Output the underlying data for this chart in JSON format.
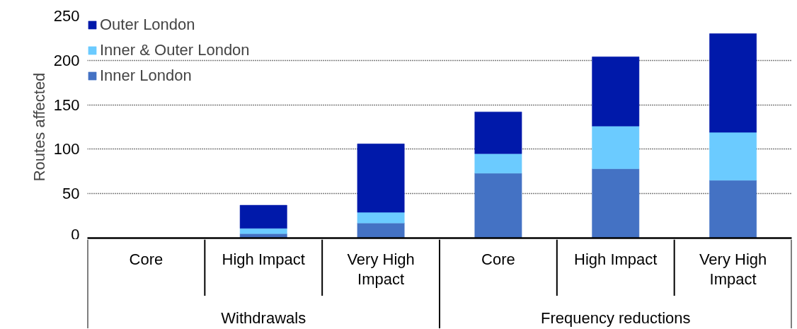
{
  "chart_data": {
    "type": "bar",
    "stacked": true,
    "ylabel": "Routes affected",
    "categories": [
      "Core",
      "High Impact",
      "Very High Impact",
      "Core",
      "High Impact",
      "Very High Impact"
    ],
    "series": [
      {
        "name": "Inner London",
        "color": "#4472c4",
        "values": [
          null,
          5,
          17,
          73,
          78,
          65
        ]
      },
      {
        "name": "Inner & Outer London",
        "color": "#6bcbff",
        "values": [
          0,
          6,
          12,
          22,
          48,
          54
        ]
      },
      {
        "name": "Outer London",
        "color": "#0019aa",
        "values": [
          0,
          26,
          77,
          47,
          78,
          111
        ]
      }
    ],
    "ylim": [
      0,
      250
    ],
    "yticks": [
      0,
      50,
      100,
      150,
      200,
      250
    ],
    "grid": "y",
    "legend": "top left",
    "annotations": [
      "Withdrawals",
      "Frequency reductions"
    ]
  }
}
